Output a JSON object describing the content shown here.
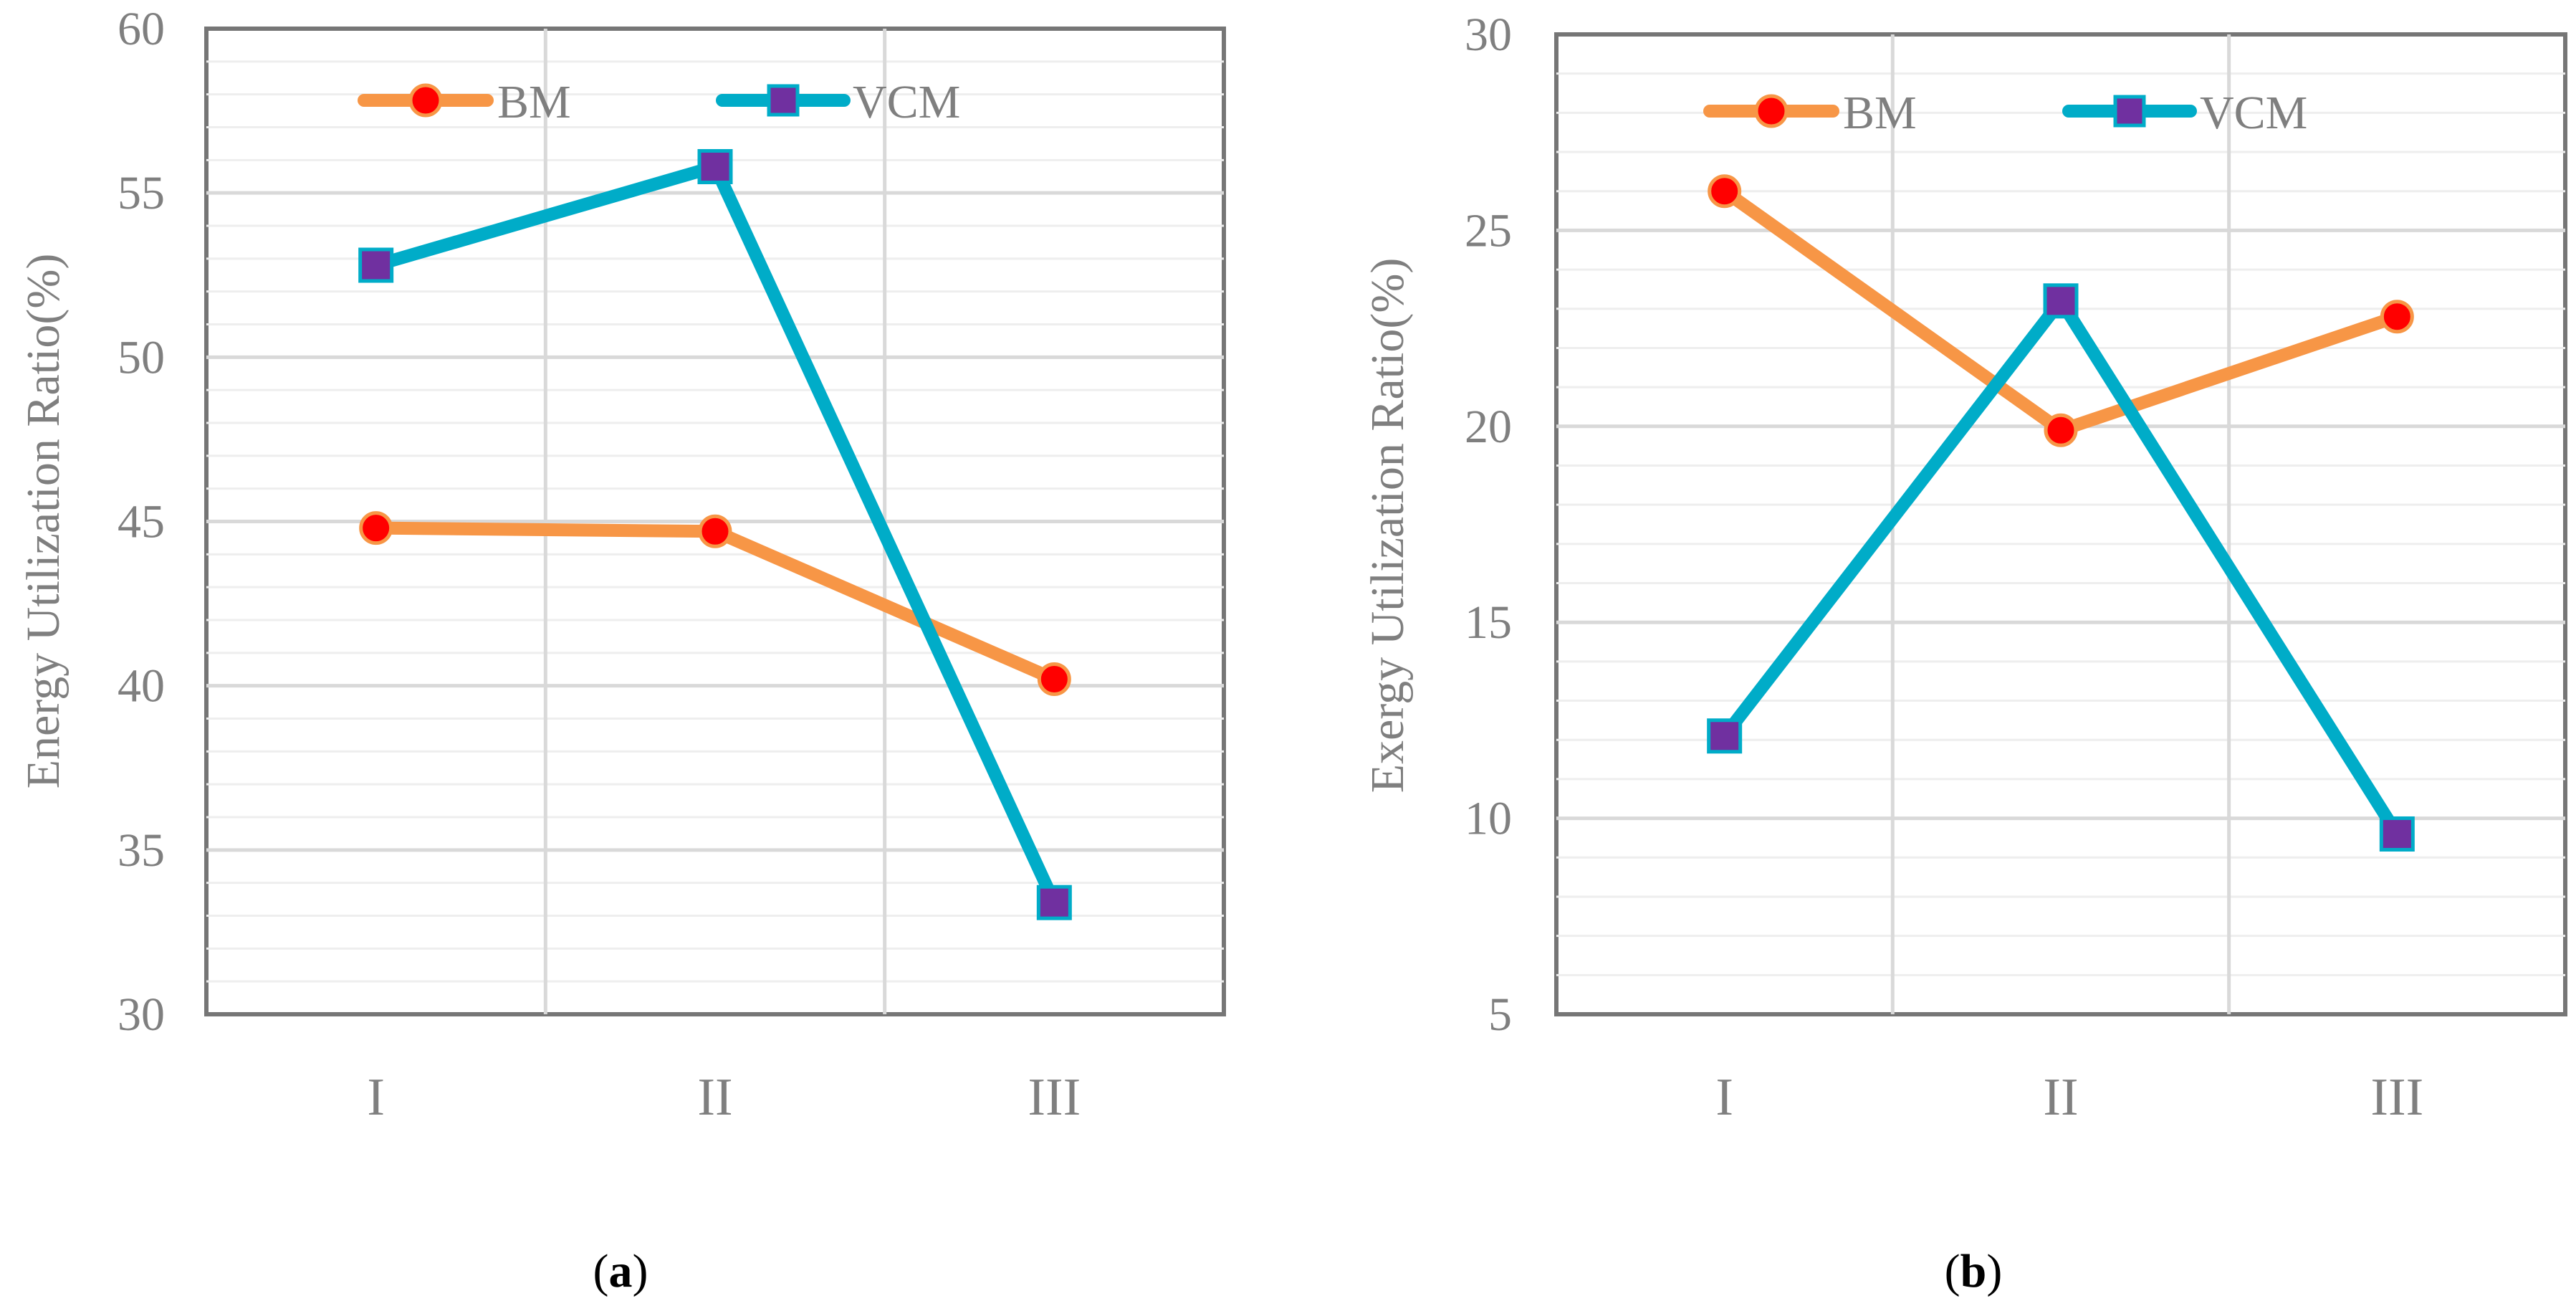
{
  "chart_data": [
    {
      "type": "line",
      "panel_label": "a",
      "categories": [
        "I",
        "II",
        "III"
      ],
      "series": [
        {
          "name": "BM",
          "values": [
            44.8,
            44.7,
            40.2
          ],
          "line_color": "#f79646",
          "marker": "circle",
          "marker_fill": "#ff0000"
        },
        {
          "name": "VCM",
          "values": [
            52.8,
            55.8,
            33.4
          ],
          "line_color": "#00acc8",
          "marker": "square",
          "marker_fill": "#7030a0"
        }
      ],
      "ylabel": "Energy Utilization Ratio(%)",
      "xlabel": "",
      "ylim": [
        30,
        60
      ],
      "yticks": [
        "30",
        "35",
        "40",
        "45",
        "50",
        "55",
        "60"
      ],
      "grid": true,
      "legend_position": "top"
    },
    {
      "type": "line",
      "panel_label": "b",
      "categories": [
        "I",
        "II",
        "III"
      ],
      "series": [
        {
          "name": "BM",
          "values": [
            26.0,
            19.9,
            22.8
          ],
          "line_color": "#f79646",
          "marker": "circle",
          "marker_fill": "#ff0000"
        },
        {
          "name": "VCM",
          "values": [
            12.1,
            23.2,
            9.6
          ],
          "line_color": "#00acc8",
          "marker": "square",
          "marker_fill": "#7030a0"
        }
      ],
      "ylabel": "Exergy Utilization Ratio(%)",
      "xlabel": "",
      "ylim": [
        5,
        30
      ],
      "yticks": [
        "5",
        "10",
        "15",
        "20",
        "25",
        "30"
      ],
      "grid": true,
      "legend_position": "top"
    }
  ]
}
